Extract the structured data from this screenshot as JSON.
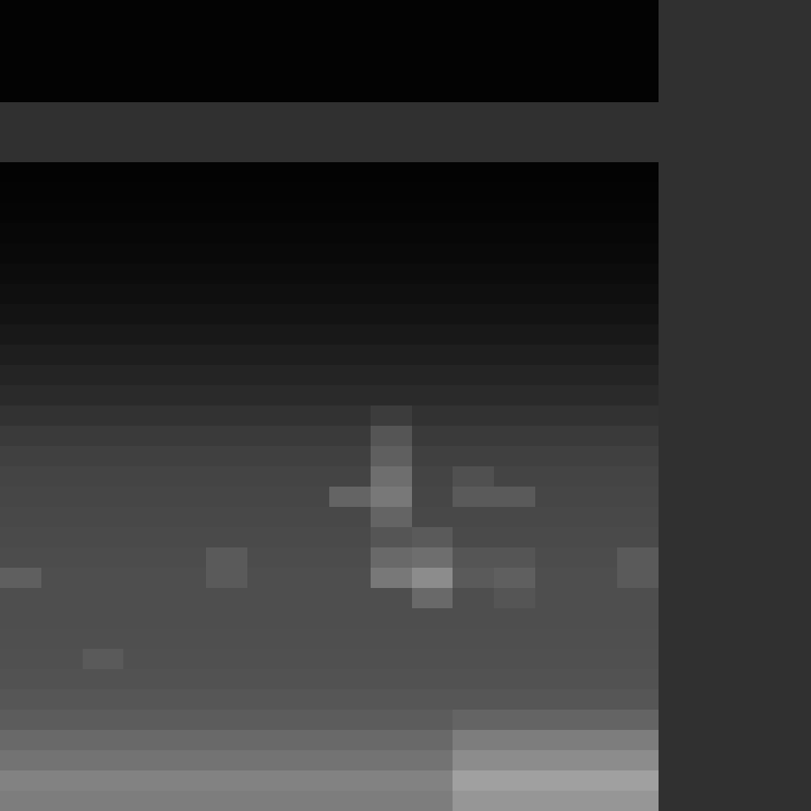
{
  "chart_data": {
    "type": "heatmap",
    "tick_labels": false,
    "zlim": [
      0,
      255
    ],
    "cells": [
      [
        3,
        3,
        3,
        3,
        3,
        3,
        3,
        3,
        3,
        3,
        3,
        3,
        3,
        3,
        3,
        3
      ],
      [
        3,
        3,
        3,
        3,
        3,
        3,
        3,
        3,
        3,
        3,
        3,
        3,
        3,
        3,
        3,
        3
      ],
      [
        3,
        3,
        3,
        3,
        3,
        3,
        3,
        3,
        3,
        3,
        3,
        3,
        3,
        3,
        3,
        3
      ],
      [
        3,
        3,
        3,
        3,
        3,
        3,
        3,
        3,
        3,
        3,
        3,
        3,
        3,
        3,
        3,
        3
      ],
      [
        3,
        3,
        3,
        3,
        3,
        3,
        3,
        3,
        3,
        3,
        3,
        3,
        3,
        3,
        3,
        3
      ],
      [
        null,
        null,
        null,
        null,
        null,
        null,
        null,
        null,
        null,
        null,
        null,
        null,
        null,
        null,
        null,
        null
      ],
      [
        null,
        null,
        null,
        null,
        null,
        null,
        null,
        null,
        null,
        null,
        null,
        null,
        null,
        null,
        null,
        null
      ],
      [
        null,
        null,
        null,
        null,
        null,
        null,
        null,
        null,
        null,
        null,
        null,
        null,
        null,
        null,
        null,
        null
      ],
      [
        3,
        3,
        3,
        3,
        3,
        3,
        3,
        3,
        3,
        3,
        3,
        3,
        3,
        3,
        3,
        3
      ],
      [
        4,
        4,
        4,
        4,
        4,
        4,
        4,
        4,
        4,
        4,
        4,
        4,
        4,
        4,
        4,
        4
      ],
      [
        5,
        5,
        5,
        5,
        5,
        5,
        5,
        5,
        5,
        5,
        5,
        5,
        5,
        5,
        5,
        5
      ],
      [
        7,
        7,
        7,
        7,
        7,
        7,
        7,
        7,
        7,
        7,
        7,
        7,
        7,
        7,
        7,
        7
      ],
      [
        9,
        9,
        9,
        9,
        9,
        9,
        9,
        9,
        9,
        9,
        9,
        9,
        9,
        9,
        9,
        9
      ],
      [
        12,
        12,
        12,
        12,
        12,
        12,
        12,
        12,
        12,
        12,
        12,
        12,
        12,
        12,
        12,
        12
      ],
      [
        15,
        15,
        15,
        15,
        15,
        15,
        15,
        15,
        15,
        15,
        15,
        15,
        15,
        15,
        15,
        15
      ],
      [
        19,
        19,
        19,
        19,
        19,
        19,
        19,
        19,
        19,
        19,
        19,
        19,
        19,
        19,
        19,
        19
      ],
      [
        24,
        24,
        24,
        24,
        24,
        24,
        24,
        24,
        24,
        24,
        24,
        24,
        24,
        24,
        24,
        24
      ],
      [
        30,
        30,
        30,
        30,
        30,
        30,
        30,
        30,
        30,
        30,
        30,
        30,
        30,
        30,
        30,
        30
      ],
      [
        36,
        36,
        36,
        36,
        36,
        36,
        36,
        36,
        36,
        36,
        36,
        36,
        36,
        36,
        36,
        36
      ],
      [
        42,
        42,
        42,
        42,
        42,
        42,
        42,
        42,
        42,
        42,
        42,
        42,
        42,
        42,
        42,
        42
      ],
      [
        50,
        50,
        50,
        50,
        50,
        50,
        50,
        50,
        50,
        60,
        50,
        50,
        50,
        50,
        50,
        50
      ],
      [
        58,
        58,
        58,
        58,
        58,
        58,
        58,
        58,
        58,
        85,
        58,
        58,
        58,
        58,
        58,
        58
      ],
      [
        64,
        64,
        64,
        64,
        64,
        64,
        64,
        64,
        64,
        95,
        64,
        64,
        64,
        64,
        64,
        64
      ],
      [
        68,
        68,
        68,
        68,
        68,
        68,
        68,
        68,
        68,
        110,
        68,
        80,
        68,
        68,
        68,
        68
      ],
      [
        70,
        70,
        70,
        70,
        70,
        70,
        70,
        70,
        100,
        120,
        70,
        90,
        90,
        70,
        70,
        70
      ],
      [
        72,
        72,
        72,
        72,
        72,
        72,
        72,
        72,
        72,
        100,
        72,
        72,
        72,
        72,
        72,
        72
      ],
      [
        74,
        74,
        74,
        74,
        74,
        74,
        74,
        74,
        74,
        85,
        90,
        74,
        74,
        74,
        74,
        74
      ],
      [
        76,
        76,
        76,
        76,
        76,
        90,
        76,
        76,
        76,
        105,
        110,
        85,
        85,
        76,
        76,
        90
      ],
      [
        95,
        78,
        78,
        78,
        78,
        90,
        78,
        78,
        78,
        120,
        140,
        90,
        95,
        78,
        78,
        90
      ],
      [
        78,
        78,
        78,
        78,
        78,
        78,
        78,
        78,
        78,
        78,
        105,
        78,
        85,
        78,
        78,
        78
      ],
      [
        78,
        78,
        78,
        78,
        78,
        78,
        78,
        78,
        78,
        78,
        78,
        78,
        78,
        78,
        78,
        78
      ],
      [
        79,
        79,
        79,
        79,
        79,
        79,
        79,
        79,
        79,
        79,
        79,
        79,
        79,
        79,
        79,
        79
      ],
      [
        80,
        80,
        90,
        80,
        80,
        80,
        80,
        80,
        80,
        80,
        80,
        80,
        80,
        80,
        80,
        80
      ],
      [
        82,
        82,
        82,
        82,
        82,
        82,
        82,
        82,
        82,
        82,
        82,
        82,
        82,
        82,
        82,
        82
      ],
      [
        86,
        86,
        86,
        86,
        86,
        86,
        86,
        86,
        86,
        86,
        86,
        86,
        86,
        86,
        86,
        86
      ],
      [
        92,
        92,
        92,
        92,
        92,
        92,
        92,
        92,
        92,
        92,
        92,
        100,
        100,
        100,
        100,
        100
      ],
      [
        105,
        105,
        105,
        105,
        105,
        105,
        105,
        105,
        105,
        105,
        105,
        125,
        125,
        125,
        125,
        125
      ],
      [
        115,
        115,
        115,
        115,
        115,
        115,
        115,
        115,
        115,
        115,
        115,
        140,
        140,
        140,
        140,
        140
      ],
      [
        130,
        130,
        130,
        130,
        130,
        130,
        130,
        130,
        130,
        130,
        130,
        160,
        160,
        160,
        160,
        160
      ],
      [
        125,
        125,
        125,
        125,
        125,
        125,
        125,
        125,
        125,
        125,
        125,
        150,
        150,
        150,
        150,
        150
      ]
    ]
  }
}
